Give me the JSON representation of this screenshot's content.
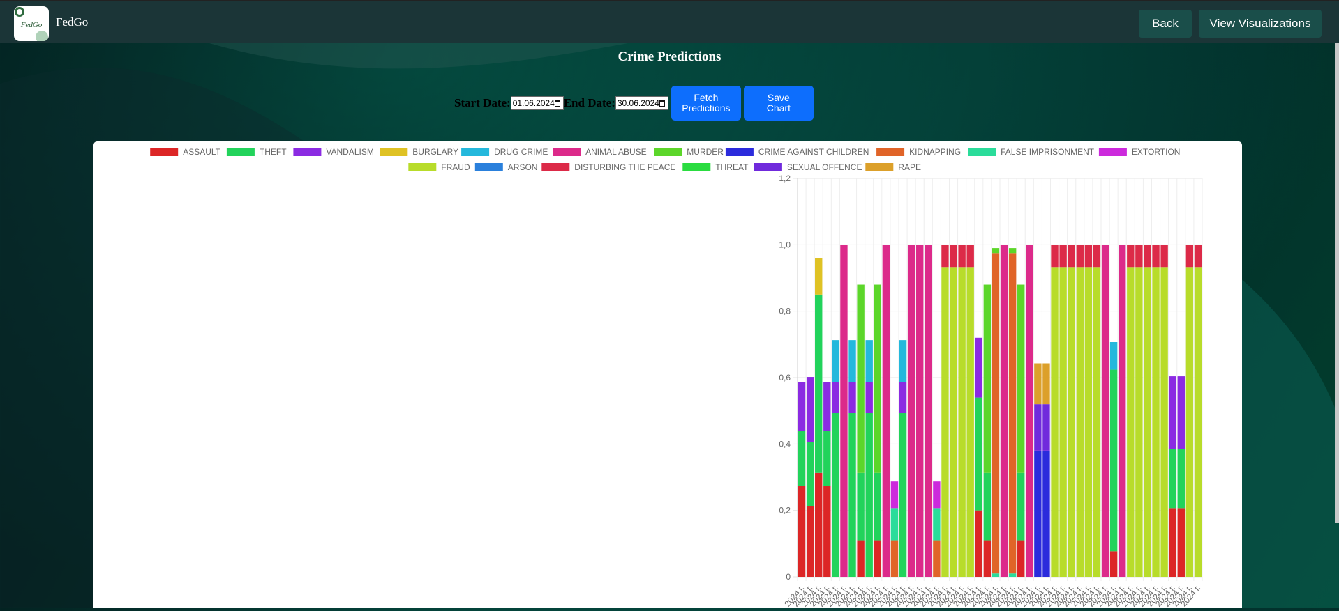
{
  "navbar": {
    "brand": "FedGo",
    "logo_text": "FedGo",
    "back_label": "Back",
    "visualizations_label": "View Visualizations"
  },
  "page": {
    "title": "Crime Predictions"
  },
  "controls": {
    "start_label": "Start Date:",
    "start_value": "01.06.2024",
    "end_label": "End Date:",
    "end_value": "30.06.2024",
    "fetch_label_1": "Fetch",
    "fetch_label_2": "Predictions",
    "save_label_1": "Save",
    "save_label_2": "Chart"
  },
  "colors": {
    "navbar": "#1b3537",
    "button_blue": "#0d6efd"
  },
  "chart_data": {
    "type": "stacked-bar",
    "ylim": [
      0,
      1.2
    ],
    "yticks": [
      "0",
      "0,2",
      "0,4",
      "0,6",
      "0,8",
      "1,0",
      "1,2"
    ],
    "legend_position": "top",
    "category_label": "2024 г.",
    "n_categories": 48,
    "series": [
      {
        "name": "ASSAULT",
        "color": "#dc2626"
      },
      {
        "name": "THEFT",
        "color": "#22d35b"
      },
      {
        "name": "VANDALISM",
        "color": "#8b2be2"
      },
      {
        "name": "BURGLARY",
        "color": "#dfc224"
      },
      {
        "name": "DRUG CRIME",
        "color": "#24b8dc"
      },
      {
        "name": "ANIMAL ABUSE",
        "color": "#dc2a8a"
      },
      {
        "name": "MURDER",
        "color": "#5cd62a"
      },
      {
        "name": "CRIME AGAINST CHILDREN",
        "color": "#2b2bdc"
      },
      {
        "name": "KIDNAPPING",
        "color": "#e06428"
      },
      {
        "name": "FALSE IMPRISONMENT",
        "color": "#2adc9a"
      },
      {
        "name": "EXTORTION",
        "color": "#cc2adc"
      },
      {
        "name": "FRAUD",
        "color": "#b8dc2a"
      },
      {
        "name": "ARSON",
        "color": "#2a80dc"
      },
      {
        "name": "DISTURBING THE PEACE",
        "color": "#dc2a48"
      },
      {
        "name": "THREAT",
        "color": "#2adc40"
      },
      {
        "name": "SEXUAL OFFENCE",
        "color": "#702adc"
      },
      {
        "name": "RAPE",
        "color": "#dca02a"
      }
    ],
    "bars": [
      [
        [
          "ASSAULT",
          0.273
        ],
        [
          "THEFT",
          0.167
        ],
        [
          "VANDALISM",
          0.146
        ]
      ],
      [
        [
          "ASSAULT",
          0.213
        ],
        [
          "THEFT",
          0.193
        ],
        [
          "VANDALISM",
          0.196
        ]
      ],
      [
        [
          "ASSAULT",
          0.313
        ],
        [
          "THEFT",
          0.537
        ],
        [
          "BURGLARY",
          0.11
        ]
      ],
      [
        [
          "ASSAULT",
          0.273
        ],
        [
          "THEFT",
          0.167
        ],
        [
          "VANDALISM",
          0.146
        ]
      ],
      [
        [
          "THEFT",
          0.493
        ],
        [
          "VANDALISM",
          0.093
        ],
        [
          "DRUG CRIME",
          0.127
        ]
      ],
      [
        [
          "ANIMAL ABUSE",
          1.0
        ]
      ],
      [
        [
          "THEFT",
          0.493
        ],
        [
          "VANDALISM",
          0.093
        ],
        [
          "DRUG CRIME",
          0.127
        ]
      ],
      [
        [
          "ASSAULT",
          0.11
        ],
        [
          "THEFT",
          0.203
        ],
        [
          "MURDER",
          0.567
        ]
      ],
      [
        [
          "THEFT",
          0.493
        ],
        [
          "VANDALISM",
          0.093
        ],
        [
          "DRUG CRIME",
          0.127
        ]
      ],
      [
        [
          "ASSAULT",
          0.11
        ],
        [
          "THEFT",
          0.203
        ],
        [
          "MURDER",
          0.567
        ]
      ],
      [
        [
          "ANIMAL ABUSE",
          1.0
        ]
      ],
      [
        [
          "KIDNAPPING",
          0.11
        ],
        [
          "FALSE IMPRISONMENT",
          0.097
        ],
        [
          "EXTORTION",
          0.08
        ]
      ],
      [
        [
          "THEFT",
          0.493
        ],
        [
          "VANDALISM",
          0.093
        ],
        [
          "DRUG CRIME",
          0.127
        ]
      ],
      [
        [
          "ANIMAL ABUSE",
          1.0
        ]
      ],
      [
        [
          "ANIMAL ABUSE",
          1.0
        ]
      ],
      [
        [
          "ANIMAL ABUSE",
          1.0
        ]
      ],
      [
        [
          "KIDNAPPING",
          0.11
        ],
        [
          "FALSE IMPRISONMENT",
          0.097
        ],
        [
          "EXTORTION",
          0.08
        ]
      ],
      [
        [
          "FRAUD",
          0.933
        ],
        [
          "DISTURBING THE PEACE",
          0.067
        ]
      ],
      [
        [
          "FRAUD",
          0.933
        ],
        [
          "DISTURBING THE PEACE",
          0.067
        ]
      ],
      [
        [
          "FRAUD",
          0.933
        ],
        [
          "DISTURBING THE PEACE",
          0.067
        ]
      ],
      [
        [
          "FRAUD",
          0.933
        ],
        [
          "DISTURBING THE PEACE",
          0.067
        ]
      ],
      [
        [
          "ASSAULT",
          0.2
        ],
        [
          "THEFT",
          0.34
        ],
        [
          "VANDALISM",
          0.18
        ]
      ],
      [
        [
          "ASSAULT",
          0.11
        ],
        [
          "THEFT",
          0.203
        ],
        [
          "MURDER",
          0.567
        ]
      ],
      [
        [
          "FALSE IMPRISONMENT",
          0.01
        ],
        [
          "KIDNAPPING",
          0.965
        ],
        [
          "MURDER",
          0.015
        ]
      ],
      [
        [
          "ANIMAL ABUSE",
          1.0
        ]
      ],
      [
        [
          "FALSE IMPRISONMENT",
          0.01
        ],
        [
          "KIDNAPPING",
          0.965
        ],
        [
          "MURDER",
          0.015
        ]
      ],
      [
        [
          "ASSAULT",
          0.11
        ],
        [
          "THEFT",
          0.203
        ],
        [
          "MURDER",
          0.567
        ]
      ],
      [
        [
          "ANIMAL ABUSE",
          1.0
        ]
      ],
      [
        [
          "CRIME AGAINST CHILDREN",
          0.38
        ],
        [
          "SEXUAL OFFENCE",
          0.14
        ],
        [
          "RAPE",
          0.123
        ]
      ],
      [
        [
          "CRIME AGAINST CHILDREN",
          0.38
        ],
        [
          "SEXUAL OFFENCE",
          0.14
        ],
        [
          "RAPE",
          0.123
        ]
      ],
      [
        [
          "FRAUD",
          0.933
        ],
        [
          "DISTURBING THE PEACE",
          0.067
        ]
      ],
      [
        [
          "FRAUD",
          0.933
        ],
        [
          "DISTURBING THE PEACE",
          0.067
        ]
      ],
      [
        [
          "FRAUD",
          0.933
        ],
        [
          "DISTURBING THE PEACE",
          0.067
        ]
      ],
      [
        [
          "FRAUD",
          0.933
        ],
        [
          "DISTURBING THE PEACE",
          0.067
        ]
      ],
      [
        [
          "FRAUD",
          0.933
        ],
        [
          "DISTURBING THE PEACE",
          0.067
        ]
      ],
      [
        [
          "FRAUD",
          0.933
        ],
        [
          "DISTURBING THE PEACE",
          0.067
        ]
      ],
      [
        [
          "ANIMAL ABUSE",
          1.0
        ]
      ],
      [
        [
          "ASSAULT",
          0.077
        ],
        [
          "THEFT",
          0.547
        ],
        [
          "DRUG CRIME",
          0.083
        ]
      ],
      [
        [
          "ANIMAL ABUSE",
          1.0
        ]
      ],
      [
        [
          "FRAUD",
          0.933
        ],
        [
          "DISTURBING THE PEACE",
          0.067
        ]
      ],
      [
        [
          "FRAUD",
          0.933
        ],
        [
          "DISTURBING THE PEACE",
          0.067
        ]
      ],
      [
        [
          "FRAUD",
          0.933
        ],
        [
          "DISTURBING THE PEACE",
          0.067
        ]
      ],
      [
        [
          "FRAUD",
          0.933
        ],
        [
          "DISTURBING THE PEACE",
          0.067
        ]
      ],
      [
        [
          "FRAUD",
          0.933
        ],
        [
          "DISTURBING THE PEACE",
          0.067
        ]
      ],
      [
        [
          "ASSAULT",
          0.207
        ],
        [
          "THEFT",
          0.177
        ],
        [
          "VANDALISM",
          0.22
        ]
      ],
      [
        [
          "ASSAULT",
          0.207
        ],
        [
          "THEFT",
          0.177
        ],
        [
          "VANDALISM",
          0.22
        ]
      ],
      [
        [
          "FRAUD",
          0.933
        ],
        [
          "DISTURBING THE PEACE",
          0.067
        ]
      ],
      [
        [
          "FRAUD",
          0.933
        ],
        [
          "DISTURBING THE PEACE",
          0.067
        ]
      ]
    ]
  }
}
